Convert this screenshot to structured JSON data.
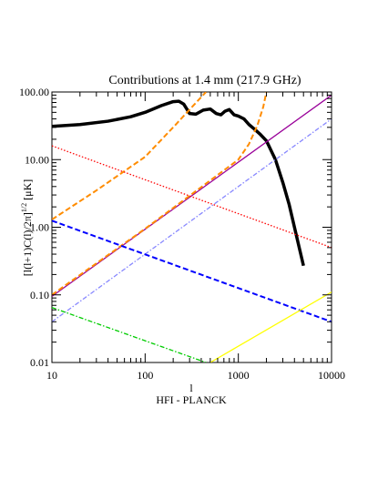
{
  "chart_data": {
    "type": "line",
    "title": "Contributions at 1.4 mm (217.9 GHz)",
    "xlabel": "l",
    "subtitle": "HFI - PLANCK",
    "ylabel_main": "[l(l+1)C(l)/2π]",
    "ylabel_exponent": "1/2",
    "ylabel_unit": " [μK]",
    "xscale": "log",
    "yscale": "log",
    "xlim": [
      10,
      10000
    ],
    "ylim": [
      0.01,
      100
    ],
    "xticks": [
      10,
      100,
      1000,
      10000
    ],
    "yticks": [
      {
        "value": 0.01,
        "label": "0.01"
      },
      {
        "value": 0.1,
        "label": "0.10"
      },
      {
        "value": 1,
        "label": "1.00"
      },
      {
        "value": 10,
        "label": "10.00"
      },
      {
        "value": 100,
        "label": "100.00"
      }
    ],
    "series": [
      {
        "color": "#000000",
        "style": "thick",
        "x": [
          10,
          20,
          40,
          70,
          100,
          150,
          200,
          230,
          260,
          300,
          350,
          420,
          500,
          580,
          650,
          720,
          800,
          900,
          1000,
          1150,
          1300,
          1500,
          1700,
          2000,
          2500,
          3000,
          3500,
          4000,
          4500,
          5000
        ],
        "values": [
          31,
          33,
          37,
          43,
          50,
          63,
          72,
          73,
          66,
          48,
          47,
          54,
          56,
          48,
          46,
          52,
          55,
          46,
          44,
          40,
          33,
          28,
          24,
          19,
          10,
          4.6,
          2.2,
          1.0,
          0.5,
          0.27
        ]
      },
      {
        "color": "#990099",
        "style": "solid",
        "x": [
          10,
          10000
        ],
        "values": [
          0.095,
          90
        ]
      },
      {
        "color": "#ff8c00",
        "style": "dashed",
        "x": [
          10,
          100,
          1000,
          1300,
          1600,
          1850,
          2000
        ],
        "values": [
          0.1,
          0.95,
          10,
          17,
          32,
          60,
          100
        ]
      },
      {
        "color": "#ff8c00",
        "style": "dashed",
        "x": [
          10,
          30,
          100,
          200,
          300,
          450
        ],
        "values": [
          1.3,
          3.5,
          11,
          30,
          55,
          100
        ]
      },
      {
        "color": "#ff0000",
        "style": "dotted",
        "x": [
          10,
          10000
        ],
        "values": [
          16,
          0.5
        ]
      },
      {
        "color": "#8888ff",
        "style": "dashdot",
        "x": [
          10,
          10000
        ],
        "values": [
          0.04,
          40
        ]
      },
      {
        "color": "#0000ff",
        "style": "dashed",
        "x": [
          10,
          10000
        ],
        "values": [
          1.25,
          0.04
        ]
      },
      {
        "color": "#00cc00",
        "style": "dashdot",
        "x": [
          10,
          450
        ],
        "values": [
          0.065,
          0.01
        ]
      },
      {
        "color": "#ffff00",
        "style": "solid",
        "x": [
          500,
          10000
        ],
        "values": [
          0.01,
          0.11
        ]
      }
    ]
  }
}
